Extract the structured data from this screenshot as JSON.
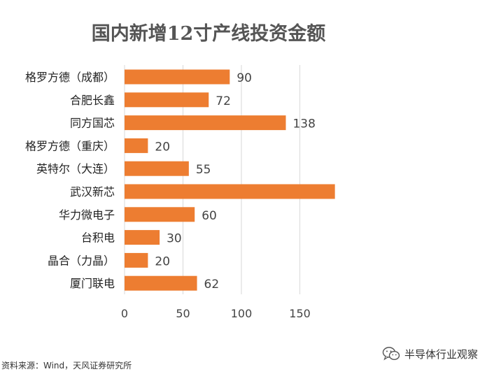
{
  "chart_data": {
    "type": "bar",
    "orientation": "horizontal",
    "title": "国内新增12寸产线投资金额",
    "categories": [
      "格罗方德（成都）",
      "合肥长鑫",
      "同方国芯",
      "格罗方德（重庆）",
      "英特尔（大连）",
      "武汉新芯",
      "华力微电子",
      "台积电",
      "晶合（力晶）",
      "厦门联电"
    ],
    "values": [
      90,
      72,
      138,
      20,
      55,
      180,
      60,
      30,
      20,
      62
    ],
    "value_labels": [
      "90",
      "72",
      "138",
      "20",
      "55",
      "",
      "60",
      "30",
      "20",
      "62"
    ],
    "xticks": [
      0,
      50,
      100,
      150
    ],
    "xtick_labels": [
      "0",
      "50",
      "100",
      "150"
    ],
    "xlim": [
      0,
      185
    ],
    "grid": true,
    "bar_color": "#ed7d31",
    "legend": "none"
  },
  "source": "资料来源：Wind，天风证券研究所",
  "watermark": {
    "icon": "wechat-icon",
    "text": "半导体行业观察"
  }
}
